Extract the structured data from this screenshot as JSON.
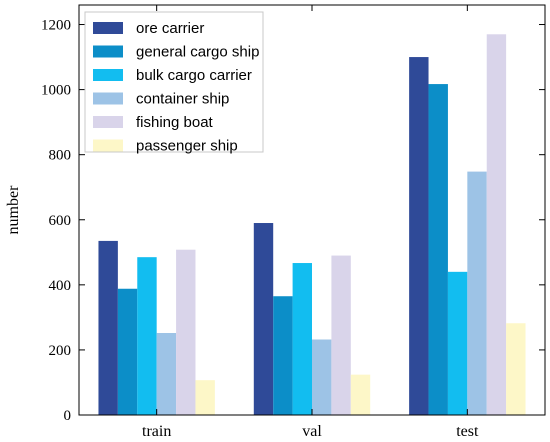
{
  "chart_data": {
    "type": "bar",
    "categories": [
      "train",
      "val",
      "test"
    ],
    "ylabel": "number",
    "xlabel": "",
    "ylim": [
      0,
      1260
    ],
    "yticks": [
      0,
      200,
      400,
      600,
      800,
      1000,
      1200
    ],
    "grid": false,
    "legend_position": "top-left",
    "series": [
      {
        "name": "ore carrier",
        "color": "#2f4a98",
        "values": [
          535,
          590,
          1100
        ]
      },
      {
        "name": "general cargo ship",
        "color": "#0c8ec8",
        "values": [
          388,
          365,
          1017
        ]
      },
      {
        "name": "bulk cargo carrier",
        "color": "#12bdf0",
        "values": [
          485,
          467,
          440
        ]
      },
      {
        "name": "container ship",
        "color": "#9dc3e6",
        "values": [
          252,
          232,
          748
        ]
      },
      {
        "name": "fishing boat",
        "color": "#d9d4ea",
        "values": [
          508,
          490,
          1170
        ]
      },
      {
        "name": "passenger ship",
        "color": "#fdf7c8",
        "values": [
          107,
          124,
          282
        ]
      }
    ]
  }
}
